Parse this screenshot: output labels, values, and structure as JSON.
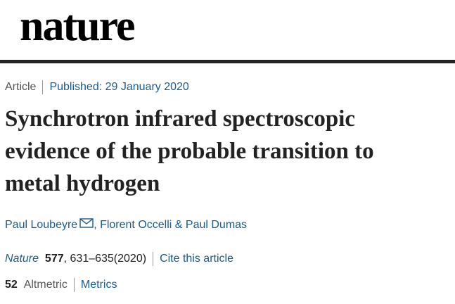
{
  "header": {
    "logo": "nature"
  },
  "article_info": {
    "type": "Article",
    "published": "Published: 29 January 2020"
  },
  "title_lines": [
    "Synchrotron infrared spectroscopic",
    "evidence of the probable transition to",
    "metal hydrogen"
  ],
  "authors": [
    "Paul Loubeyre",
    "Florent Occelli",
    "Paul Dumas"
  ],
  "author_separators": [
    ", ",
    " & "
  ],
  "citation": {
    "journal": "Nature",
    "volume": 577,
    "pages": ", 631–635(2020)",
    "cite": "Cite this article"
  },
  "metrics": {
    "altmetric_score": 52,
    "altmetric_label": "Altmetric",
    "metrics_link": "Metrics"
  }
}
